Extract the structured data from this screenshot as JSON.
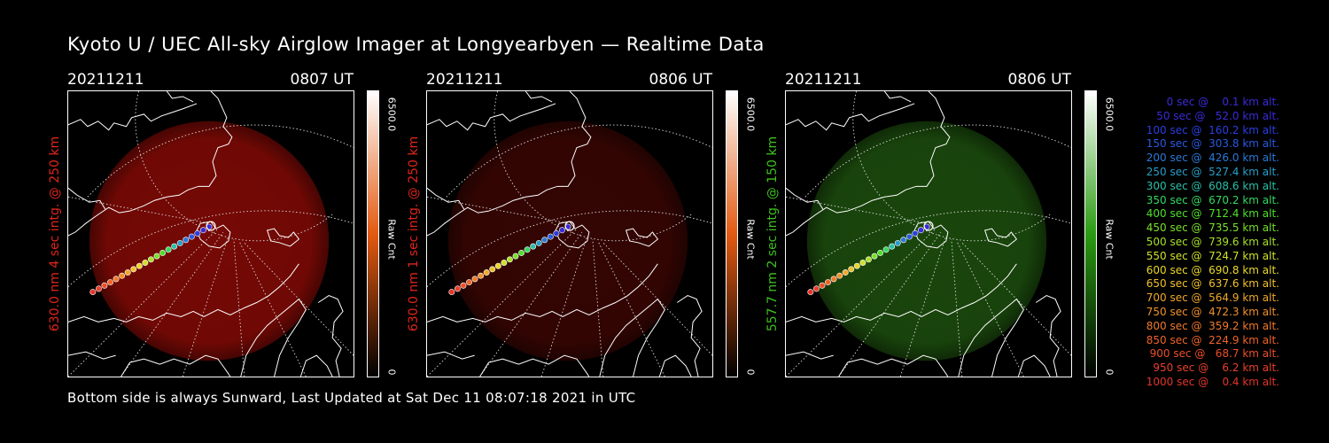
{
  "title": "Kyoto U / UEC All-sky Airglow Imager at Longyearbyen — Realtime Data",
  "footer": "Bottom side is always Sunward, Last Updated at Sat Dec 11 08:07:18 2021 in UTC",
  "panels": [
    {
      "date": "20211211",
      "time": "0807 UT",
      "ylabel": "630.0 nm 4 sec intg. @ 250 km",
      "ylabel_color": "#e0251a",
      "cbar_max": "6500.0",
      "cbar_unit": "Raw Cnt",
      "cbar_min": "0",
      "cbar_color": "#e25a12",
      "glow_color": "#8a0b06",
      "glow_opacity": 0.85
    },
    {
      "date": "20211211",
      "time": "0806 UT",
      "ylabel": "630.0 nm 1 sec intg. @ 250 km",
      "ylabel_color": "#e0251a",
      "cbar_max": "6500.0",
      "cbar_unit": "Raw Cnt",
      "cbar_min": "0",
      "cbar_color": "#e25a12",
      "glow_color": "#3a0603",
      "glow_opacity": 0.9
    },
    {
      "date": "20211211",
      "time": "0806 UT",
      "ylabel": "557.7 nm 2 sec intg. @ 150 km",
      "ylabel_color": "#3ec21f",
      "cbar_max": "6500.0",
      "cbar_unit": "Raw Cnt",
      "cbar_min": "0",
      "cbar_color": "#2a9b12",
      "glow_color": "#1b4a0d",
      "glow_opacity": 0.95
    }
  ],
  "legend": [
    {
      "text": "   0 sec @    0.1 km alt.",
      "color": "#3a2bd8"
    },
    {
      "text": "  50 sec @   52.0 km alt.",
      "color": "#3a2bd8"
    },
    {
      "text": " 100 sec @  160.2 km alt.",
      "color": "#2a3ee0"
    },
    {
      "text": " 150 sec @  303.8 km alt.",
      "color": "#2a5ae0"
    },
    {
      "text": " 200 sec @  426.0 km alt.",
      "color": "#2a79d8"
    },
    {
      "text": " 250 sec @  527.4 km alt.",
      "color": "#2a9ec8"
    },
    {
      "text": " 300 sec @  608.6 km alt.",
      "color": "#2ac0a8"
    },
    {
      "text": " 350 sec @  670.2 km alt.",
      "color": "#34d860"
    },
    {
      "text": " 400 sec @  712.4 km alt.",
      "color": "#4ee02a"
    },
    {
      "text": " 450 sec @  735.5 km alt.",
      "color": "#7ae02a"
    },
    {
      "text": " 500 sec @  739.6 km alt.",
      "color": "#a8e02a"
    },
    {
      "text": " 550 sec @  724.7 km alt.",
      "color": "#d0e02a"
    },
    {
      "text": " 600 sec @  690.8 km alt.",
      "color": "#e8d82a"
    },
    {
      "text": " 650 sec @  637.6 km alt.",
      "color": "#f0c02a"
    },
    {
      "text": " 700 sec @  564.9 km alt.",
      "color": "#f0a82a"
    },
    {
      "text": " 750 sec @  472.3 km alt.",
      "color": "#f0902a"
    },
    {
      "text": " 800 sec @  359.2 km alt.",
      "color": "#f07a2a"
    },
    {
      "text": " 850 sec @  224.9 km alt.",
      "color": "#f0642a"
    },
    {
      "text": " 900 sec @   68.7 km alt.",
      "color": "#ec4e2a"
    },
    {
      "text": " 950 sec @    6.2 km alt.",
      "color": "#e8402a"
    },
    {
      "text": "1000 sec @    0.4 km alt.",
      "color": "#e4342a"
    }
  ]
}
